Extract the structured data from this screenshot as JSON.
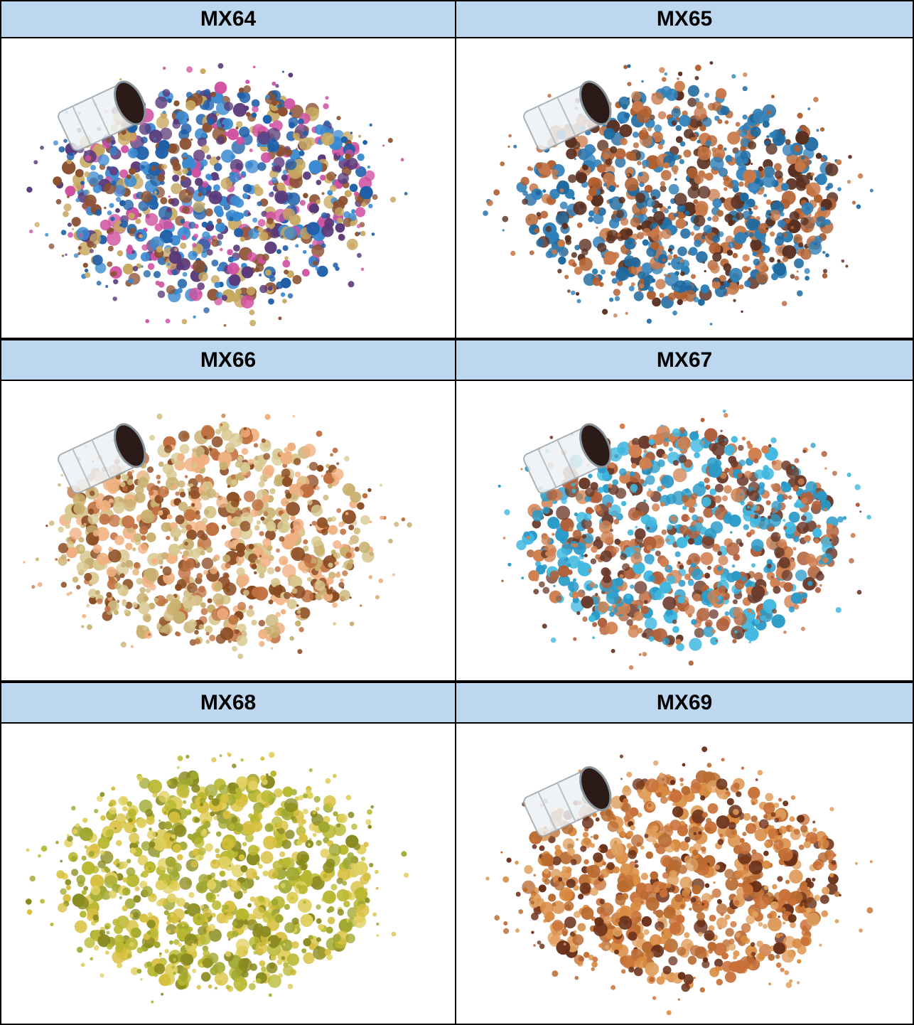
{
  "products": [
    {
      "label": "MX64"
    },
    {
      "label": "MX65"
    },
    {
      "label": "MX66"
    },
    {
      "label": "MX67"
    },
    {
      "label": "MX68"
    },
    {
      "label": "MX69"
    }
  ]
}
